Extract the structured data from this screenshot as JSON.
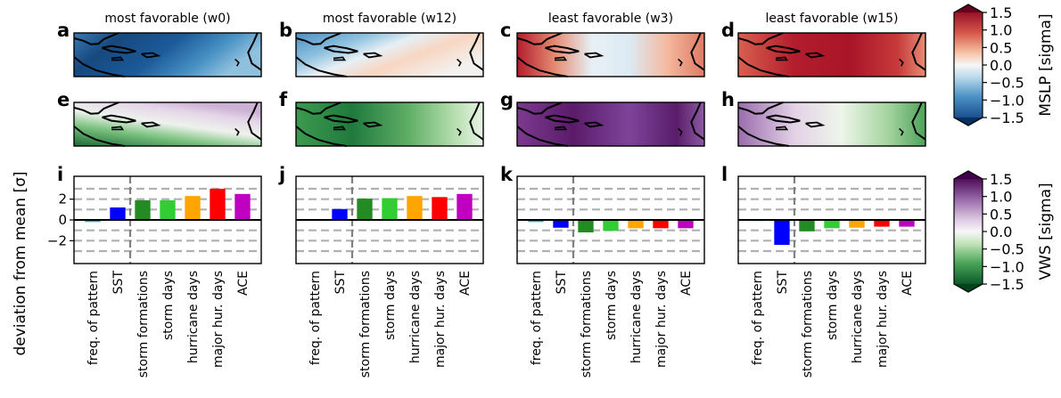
{
  "column_titles": [
    "most favorable (w0)",
    "most favorable (w12)",
    "least favorable (w3)",
    "least favorable (w15)"
  ],
  "panel_letters": {
    "mslp_row": [
      "a",
      "b",
      "c",
      "d"
    ],
    "vws_row": [
      "e",
      "f",
      "g",
      "h"
    ],
    "bar_row": [
      "i",
      "j",
      "k",
      "l"
    ]
  },
  "maps": {
    "mslp": [
      {
        "panel": "a",
        "pattern": "mostly negative (blue) across basin"
      },
      {
        "panel": "b",
        "pattern": "negative north-west, weak positive south-east"
      },
      {
        "panel": "c",
        "pattern": "strong positive west and east, near zero centre"
      },
      {
        "panel": "d",
        "pattern": "strong positive across basin"
      }
    ],
    "vws": [
      {
        "panel": "e",
        "pattern": "negative south-west, slight positive north"
      },
      {
        "panel": "f",
        "pattern": "negative across basin"
      },
      {
        "panel": "g",
        "pattern": "strong positive across basin"
      },
      {
        "panel": "h",
        "pattern": "mixed positive west, negative east"
      }
    ]
  },
  "colorbars": [
    {
      "label": "MSLP [sigma]",
      "colormap": "RdBu_r",
      "ticks": [
        "1.5",
        "1.0",
        "0.5",
        "0.0",
        "−0.5",
        "−1.0",
        "−1.5"
      ],
      "range": [
        -1.5,
        1.5
      ]
    },
    {
      "label": "VWS [sigma]",
      "colormap": "PRGn",
      "ticks": [
        "1.5",
        "1.0",
        "0.5",
        "0.0",
        "−0.5",
        "−1.0",
        "−1.5"
      ],
      "range": [
        -1.5,
        1.5
      ]
    }
  ],
  "bar_ylabel": "deviation from mean [σ]",
  "bar_ytick_labels": [
    "2",
    "0",
    "−2"
  ],
  "chart_data": [
    {
      "type": "bar",
      "panel": "i",
      "title": "",
      "ylabel": "deviation from mean [σ]",
      "ylim": [
        -4.2,
        4.2
      ],
      "categories": [
        "freq. of pattern",
        "SST",
        "storm formations",
        "storm days",
        "hurricane days",
        "major hur. days",
        "ACE"
      ],
      "values": [
        -0.2,
        1.2,
        1.9,
        1.9,
        2.3,
        3.0,
        2.5
      ],
      "colors": [
        "#00c0c0",
        "#0000ff",
        "#228b22",
        "#32cd32",
        "#ffa500",
        "#ff0000",
        "#c000c0"
      ],
      "grid": "dashed horizontal",
      "separator_after_category": 1
    },
    {
      "type": "bar",
      "panel": "j",
      "title": "",
      "ylim": [
        -4.2,
        4.2
      ],
      "categories": [
        "freq. of pattern",
        "SST",
        "storm formations",
        "storm days",
        "hurricane days",
        "major hur. days",
        "ACE"
      ],
      "values": [
        0.0,
        1.05,
        2.05,
        2.1,
        2.3,
        2.2,
        2.5
      ],
      "colors": [
        "#00c0c0",
        "#0000ff",
        "#228b22",
        "#32cd32",
        "#ffa500",
        "#ff0000",
        "#c000c0"
      ],
      "grid": "dashed horizontal",
      "separator_after_category": 1
    },
    {
      "type": "bar",
      "panel": "k",
      "title": "",
      "ylim": [
        -4.2,
        4.2
      ],
      "categories": [
        "freq. of pattern",
        "SST",
        "storm formations",
        "storm days",
        "hurricane days",
        "major hur. days",
        "ACE"
      ],
      "values": [
        -0.2,
        -0.75,
        -1.2,
        -1.05,
        -0.8,
        -0.8,
        -0.8
      ],
      "colors": [
        "#00c0c0",
        "#0000ff",
        "#228b22",
        "#32cd32",
        "#ffa500",
        "#ff0000",
        "#c000c0"
      ],
      "grid": "dashed horizontal",
      "separator_after_category": 1
    },
    {
      "type": "bar",
      "panel": "l",
      "title": "",
      "ylim": [
        -4.2,
        4.2
      ],
      "categories": [
        "freq. of pattern",
        "SST",
        "storm formations",
        "storm days",
        "hurricane days",
        "major hur. days",
        "ACE"
      ],
      "values": [
        -0.1,
        -2.4,
        -1.1,
        -0.8,
        -0.75,
        -0.65,
        -0.65
      ],
      "colors": [
        "#00c0c0",
        "#0000ff",
        "#228b22",
        "#32cd32",
        "#ffa500",
        "#ff0000",
        "#c000c0"
      ],
      "grid": "dashed horizontal",
      "separator_after_category": 1
    }
  ]
}
